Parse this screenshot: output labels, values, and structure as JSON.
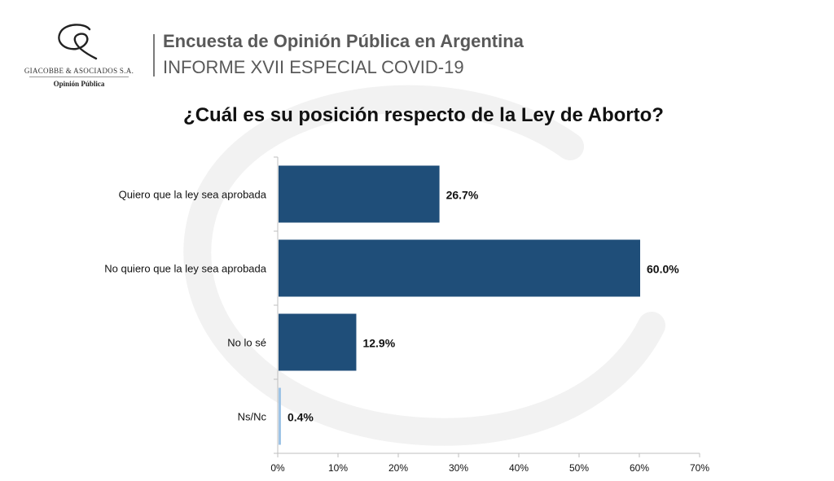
{
  "logo": {
    "icon": "giacobbe-g-logo",
    "company": "GIACOBBE & ASOCIADOS S.A.",
    "tagline": "Opinión Pública"
  },
  "header": {
    "title": "Encuesta de Opinión Pública en Argentina",
    "subtitle": "INFORME XVII ESPECIAL COVID-19"
  },
  "chart_data": {
    "type": "bar",
    "orientation": "horizontal",
    "title": "¿Cuál es su posición respecto de la Ley de Aborto?",
    "categories": [
      "Quiero que la ley sea aprobada",
      "No quiero que la ley sea aprobada",
      "No lo sé",
      "Ns/Nc"
    ],
    "values": [
      26.7,
      60.0,
      12.9,
      0.4
    ],
    "value_labels": [
      "26.7%",
      "60.0%",
      "12.9%",
      "0.4%"
    ],
    "xlim": [
      0,
      70
    ],
    "xticks": [
      0,
      10,
      20,
      30,
      40,
      50,
      60,
      70
    ],
    "xtick_labels": [
      "0%",
      "10%",
      "20%",
      "30%",
      "40%",
      "50%",
      "60%",
      "70%"
    ],
    "grid": false,
    "legend": "none",
    "colors": {
      "bar": "#1f4e79",
      "bar_last": "#9dc3e6",
      "axis": "#bfbfbf",
      "text": "#111111"
    }
  }
}
